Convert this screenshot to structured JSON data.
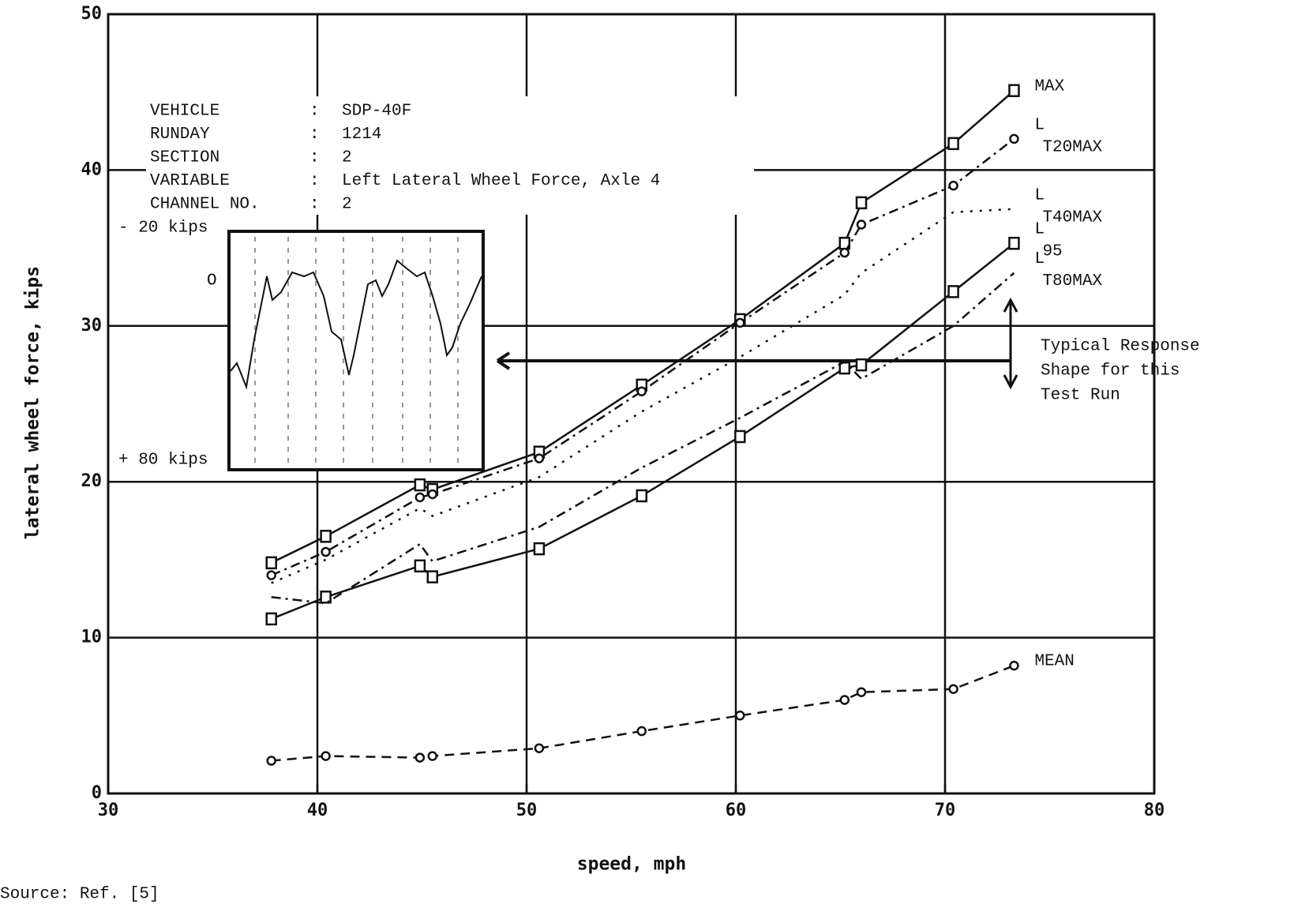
{
  "chart_data": {
    "type": "line",
    "xlabel": "speed, mph",
    "ylabel": "lateral wheel force, kips",
    "x": [
      37.8,
      40.4,
      44.9,
      45.5,
      50.6,
      55.5,
      60.2,
      65.2,
      66.0,
      70.4,
      73.3
    ],
    "series": [
      {
        "name": "MAX",
        "color": "#111111",
        "dash": "solid",
        "marker": "square",
        "values": [
          14.8,
          16.5,
          19.8,
          19.5,
          21.9,
          26.2,
          30.4,
          35.3,
          37.9,
          41.7,
          45.1
        ]
      },
      {
        "name": "L",
        "subscript": "T20MAX",
        "color": "#111111",
        "dash": "dashdot",
        "marker": "circle",
        "values": [
          14.0,
          15.5,
          19.0,
          19.2,
          21.5,
          25.8,
          30.2,
          34.7,
          36.5,
          39.0,
          42.0
        ]
      },
      {
        "name": "L",
        "subscript": "T40MAX",
        "color": "#111111",
        "dash": "dotted",
        "marker": "none",
        "values": [
          13.5,
          15.0,
          18.3,
          17.8,
          20.3,
          24.5,
          28.0,
          32.0,
          33.4,
          37.3,
          37.5
        ]
      },
      {
        "name": "L",
        "subscript": "95",
        "color": "#111111",
        "dash": "solid",
        "marker": "square",
        "values": [
          11.2,
          12.6,
          14.6,
          13.9,
          15.7,
          19.1,
          22.9,
          27.3,
          27.5,
          32.2,
          35.3
        ]
      },
      {
        "name": "L",
        "subscript": "T80MAX",
        "color": "#111111",
        "dash": "dashdot",
        "marker": "none",
        "values": [
          12.6,
          12.2,
          16.0,
          14.9,
          17.1,
          20.9,
          24.1,
          27.7,
          26.6,
          30.0,
          33.4
        ]
      },
      {
        "name": "MEAN",
        "color": "#111111",
        "dash": "dashed",
        "marker": "circle",
        "values": [
          2.1,
          2.4,
          2.3,
          2.4,
          2.9,
          4.0,
          5.0,
          6.0,
          6.5,
          6.7,
          8.2
        ]
      }
    ],
    "xlim": [
      30,
      80
    ],
    "xticks": [
      30,
      40,
      50,
      60,
      70,
      80
    ],
    "ylim": [
      0,
      50
    ],
    "yticks": [
      0,
      10,
      20,
      30,
      40,
      50
    ],
    "grid": true,
    "info_separator": ":",
    "info": [
      {
        "label": "VEHICLE",
        "value": "SDP-40F"
      },
      {
        "label": "RUNDAY",
        "value": "1214"
      },
      {
        "label": "SECTION",
        "value": "2"
      },
      {
        "label": "VARIABLE",
        "value": "Left Lateral Wheel Force, Axle 4"
      },
      {
        "label": "CHANNEL NO.",
        "value": "2"
      }
    ],
    "inset_labels": {
      "top": "- 20 kips",
      "zero": "O",
      "bottom": "+ 80 kips"
    },
    "annotation": [
      "Typical Response",
      "Shape for this",
      "Test Run"
    ],
    "source": "Source: Ref. [5]"
  }
}
